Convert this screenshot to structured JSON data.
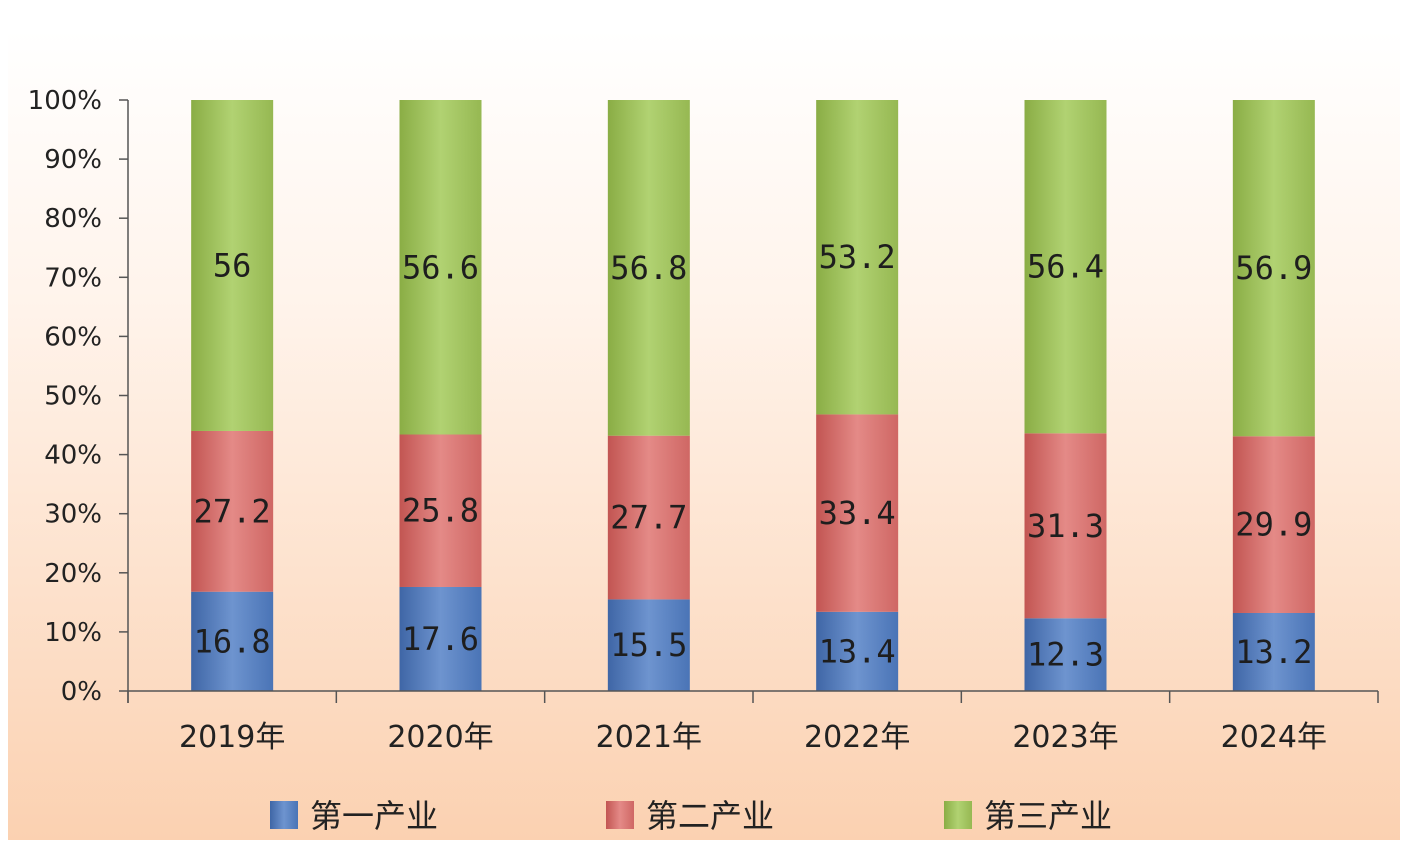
{
  "chart_data": {
    "type": "bar",
    "stacked": true,
    "normalized": true,
    "categories": [
      "2019年",
      "2020年",
      "2021年",
      "2022年",
      "2023年",
      "2024年"
    ],
    "series": [
      {
        "name": "第一产业",
        "values": [
          16.8,
          17.6,
          15.5,
          13.4,
          12.3,
          13.2
        ],
        "labels": [
          "16.8",
          "17.6",
          "15.5",
          "13.4",
          "12.3",
          "13.2"
        ],
        "color": "#4f79b8"
      },
      {
        "name": "第二产业",
        "values": [
          27.2,
          25.8,
          27.7,
          33.4,
          31.3,
          29.9
        ],
        "labels": [
          "27.2",
          "25.8",
          "27.7",
          "33.4",
          "31.3",
          "29.9"
        ],
        "color": "#d26b69"
      },
      {
        "name": "第三产业",
        "values": [
          56,
          56.6,
          56.8,
          53.2,
          56.4,
          56.9
        ],
        "labels": [
          "56",
          "56.6",
          "56.8",
          "53.2",
          "56.4",
          "56.9"
        ],
        "color": "#9bbb59"
      }
    ],
    "yticks": [
      "0%",
      "10%",
      "20%",
      "30%",
      "40%",
      "50%",
      "60%",
      "70%",
      "80%",
      "90%",
      "100%"
    ],
    "ylim": [
      0,
      100
    ],
    "legend_position": "bottom",
    "grid": false,
    "background_gradient": [
      "#ffffff",
      "#fbd3b4"
    ]
  }
}
